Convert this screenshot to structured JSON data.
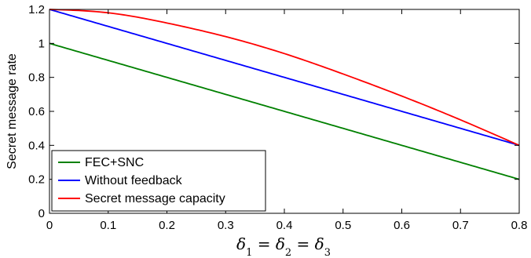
{
  "chart_data": {
    "type": "line",
    "title": "",
    "xlabel": "δ1 = δ2 = δ3",
    "ylabel": "Secret message rate",
    "xlim": [
      0,
      0.8
    ],
    "ylim": [
      0,
      1.2
    ],
    "xticks": [
      "0",
      "0.1",
      "0.2",
      "0.3",
      "0.4",
      "0.5",
      "0.6",
      "0.7",
      "0.8"
    ],
    "yticks": [
      "0",
      "0.2",
      "0.4",
      "0.6",
      "0.8",
      "1",
      "1.2"
    ],
    "grid": false,
    "legend_position": "bottom-left",
    "x": [
      0,
      0.1,
      0.2,
      0.3,
      0.4,
      0.5,
      0.6,
      0.7,
      0.8
    ],
    "series": [
      {
        "name": "FEC+SNC",
        "color": "#008000",
        "values": [
          1.0,
          0.9,
          0.8,
          0.7,
          0.6,
          0.5,
          0.4,
          0.3,
          0.2
        ]
      },
      {
        "name": "Without feedback",
        "color": "#0000ff",
        "values": [
          1.2,
          1.1,
          1.0,
          0.9,
          0.8,
          0.7,
          0.6,
          0.5,
          0.4
        ]
      },
      {
        "name": "Secret message capacity",
        "color": "#ff0000",
        "values": [
          1.2,
          1.18,
          1.12,
          1.04,
          0.94,
          0.82,
          0.69,
          0.55,
          0.4
        ]
      }
    ]
  }
}
